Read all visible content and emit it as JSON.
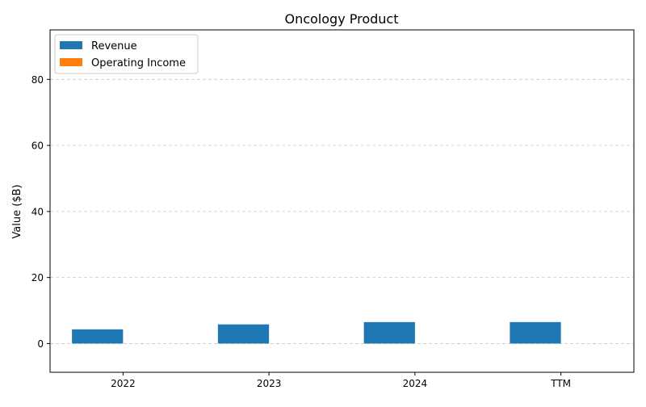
{
  "chart_data": {
    "type": "bar",
    "title": "Oncology Product",
    "xlabel": "",
    "ylabel": "Value ($B)",
    "categories": [
      "2022",
      "2023",
      "2024",
      "TTM"
    ],
    "series": [
      {
        "name": "Revenue",
        "values": [
          4.3,
          5.8,
          6.5,
          6.5
        ],
        "color": "#1f77b4"
      },
      {
        "name": "Operating Income",
        "values": [
          0,
          0,
          0,
          0
        ],
        "color": "#ff7f0e"
      }
    ],
    "ylim": [
      -8.7,
      95
    ],
    "yticks": [
      0,
      20,
      40,
      60,
      80
    ],
    "grid": true,
    "legend_position": "top-left"
  }
}
